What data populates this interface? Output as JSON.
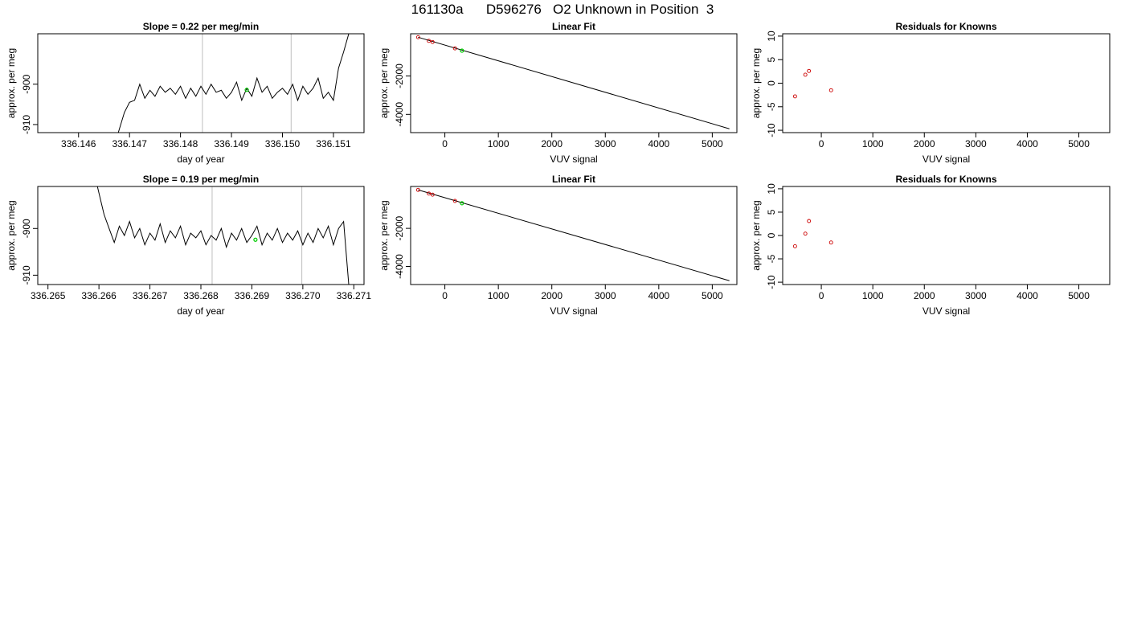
{
  "page_title": "161130a      D596276   O2 Unknown in Position  3",
  "colors": {
    "line": "#000000",
    "grid": "#bebebe",
    "known_point": "#cc0000",
    "unknown_point": "#00cc00"
  },
  "chart_data": [
    {
      "id": "ts1",
      "type": "line",
      "title": "Slope =  0.22  per meg/min",
      "xlabel": "day of year",
      "ylabel": "approx. per meg",
      "xlim": [
        336.1452,
        336.1516
      ],
      "ylim": [
        -912,
        -887.5
      ],
      "xticks": [
        336.146,
        336.147,
        336.148,
        336.149,
        336.15,
        336.151
      ],
      "xtick_labels": [
        "336.146",
        "336.147",
        "336.148",
        "336.149",
        "336.150",
        "336.151"
      ],
      "yticks": [
        -910,
        -900
      ],
      "ytick_labels": [
        "-910",
        "-900"
      ],
      "vlines": [
        336.14843,
        336.15017
      ],
      "series": [
        {
          "x": [
            336.14678,
            336.1469,
            336.147,
            336.1471,
            336.1472,
            336.1473,
            336.1474,
            336.1475,
            336.1476,
            336.1477,
            336.1478,
            336.1479,
            336.148,
            336.1481,
            336.1482,
            336.1483,
            336.1484,
            336.1485,
            336.1486,
            336.1487,
            336.1488,
            336.1489,
            336.149,
            336.1491,
            336.1492,
            336.1493,
            336.1494,
            336.1495,
            336.1496,
            336.1497,
            336.1498,
            336.1499,
            336.15,
            336.1501,
            336.1502,
            336.1503,
            336.1504,
            336.1505,
            336.1506,
            336.1507,
            336.1508,
            336.1509,
            336.151,
            336.1511,
            336.1512,
            336.1513
          ],
          "y": [
            -912,
            -907,
            -904.5,
            -904,
            -900,
            -903.5,
            -901.5,
            -903,
            -900.5,
            -902,
            -901,
            -902.5,
            -900.5,
            -903.5,
            -901,
            -903,
            -900.5,
            -902.5,
            -900,
            -902,
            -901.5,
            -903.5,
            -902,
            -899.5,
            -904,
            -901,
            -903,
            -898.5,
            -902,
            -900.5,
            -903.5,
            -902,
            -901,
            -902.5,
            -900,
            -904,
            -900.5,
            -902.5,
            -901,
            -898.5,
            -903.5,
            -902,
            -904,
            -896,
            -892,
            -887.5
          ]
        }
      ],
      "unknown_point": {
        "x": 336.1493,
        "y": -901.4
      }
    },
    {
      "id": "fit1",
      "type": "scatter",
      "title": "Linear Fit",
      "xlabel": "VUV signal",
      "ylabel": "approx. per meg",
      "xlim": [
        -640,
        5460
      ],
      "ylim": [
        -4950,
        200
      ],
      "xticks": [
        0,
        1000,
        2000,
        3000,
        4000,
        5000
      ],
      "xtick_labels": [
        "0",
        "1000",
        "2000",
        "3000",
        "4000",
        "5000"
      ],
      "yticks": [
        -4000,
        -2000
      ],
      "ytick_labels": [
        "-4000",
        "-2000"
      ],
      "fit_line": {
        "x": [
          -500,
          5320
        ],
        "y": [
          20,
          -4750
        ]
      },
      "known_points": {
        "x": [
          -500,
          -300,
          -230,
          190
        ],
        "y": [
          20,
          -170,
          -230,
          -560
        ]
      },
      "unknown_point": {
        "x": 320,
        "y": -680
      }
    },
    {
      "id": "res1",
      "type": "scatter",
      "title": "Residuals for Knowns",
      "xlabel": "VUV signal",
      "ylabel": "approx. per meg",
      "xlim": [
        -750,
        5600
      ],
      "ylim": [
        -10.5,
        10.5
      ],
      "xticks": [
        0,
        1000,
        2000,
        3000,
        4000,
        5000
      ],
      "xtick_labels": [
        "0",
        "1000",
        "2000",
        "3000",
        "4000",
        "5000"
      ],
      "yticks": [
        -10,
        -5,
        0,
        5,
        10
      ],
      "ytick_labels": [
        "-10",
        "-5",
        "0",
        "5",
        "10"
      ],
      "known_points": {
        "x": [
          -510,
          -310,
          -240,
          190
        ],
        "y": [
          -2.8,
          1.8,
          2.6,
          -1.5
        ]
      }
    },
    {
      "id": "ts2",
      "type": "line",
      "title": "Slope =  0.19  per meg/min",
      "xlabel": "day of year",
      "ylabel": "approx. per meg",
      "xlim": [
        336.2648,
        336.2712
      ],
      "ylim": [
        -912,
        -891
      ],
      "xticks": [
        336.265,
        336.266,
        336.267,
        336.268,
        336.269,
        336.27,
        336.271
      ],
      "xtick_labels": [
        "336.265",
        "336.266",
        "336.267",
        "336.268",
        "336.269",
        "336.270",
        "336.271"
      ],
      "yticks": [
        -910,
        -900
      ],
      "ytick_labels": [
        "-910",
        "-900"
      ],
      "vlines": [
        336.26822,
        336.26998
      ],
      "series": [
        {
          "x": [
            336.26597,
            336.2661,
            336.2662,
            336.2663,
            336.2664,
            336.2665,
            336.2666,
            336.2667,
            336.2668,
            336.2669,
            336.267,
            336.2671,
            336.2672,
            336.2673,
            336.2674,
            336.2675,
            336.2676,
            336.2677,
            336.2678,
            336.2679,
            336.268,
            336.2681,
            336.2682,
            336.2683,
            336.2684,
            336.2685,
            336.2686,
            336.2687,
            336.2688,
            336.2689,
            336.269,
            336.2691,
            336.2692,
            336.2693,
            336.2694,
            336.2695,
            336.2696,
            336.2697,
            336.2698,
            336.2699,
            336.27,
            336.2701,
            336.2702,
            336.2703,
            336.2704,
            336.2705,
            336.2706,
            336.2707,
            336.2708,
            336.2709
          ],
          "y": [
            -891,
            -897,
            -900,
            -903,
            -899.5,
            -901.5,
            -898.5,
            -902,
            -900,
            -903.5,
            -901,
            -902.5,
            -899,
            -903,
            -900.5,
            -902,
            -899.5,
            -903.5,
            -901,
            -902,
            -900.5,
            -903.5,
            -901.5,
            -902.5,
            -900,
            -904,
            -901,
            -902.5,
            -900,
            -903,
            -901.5,
            -899.5,
            -903.5,
            -901,
            -902.5,
            -900,
            -903,
            -901,
            -902.5,
            -900.5,
            -903.5,
            -901,
            -903,
            -900,
            -902,
            -899.5,
            -903.5,
            -900,
            -898.5,
            -912
          ]
        }
      ],
      "unknown_point": {
        "x": 336.26907,
        "y": -902.4
      }
    },
    {
      "id": "fit2",
      "type": "scatter",
      "title": "Linear Fit",
      "xlabel": "VUV signal",
      "ylabel": "approx. per meg",
      "xlim": [
        -640,
        5460
      ],
      "ylim": [
        -4950,
        200
      ],
      "xticks": [
        0,
        1000,
        2000,
        3000,
        4000,
        5000
      ],
      "xtick_labels": [
        "0",
        "1000",
        "2000",
        "3000",
        "4000",
        "5000"
      ],
      "yticks": [
        -4000,
        -2000
      ],
      "ytick_labels": [
        "-4000",
        "-2000"
      ],
      "fit_line": {
        "x": [
          -500,
          5320
        ],
        "y": [
          20,
          -4750
        ]
      },
      "known_points": {
        "x": [
          -500,
          -300,
          -230,
          190
        ],
        "y": [
          20,
          -170,
          -230,
          -560
        ]
      },
      "unknown_point": {
        "x": 320,
        "y": -680
      }
    },
    {
      "id": "res2",
      "type": "scatter",
      "title": "Residuals for Knowns",
      "xlabel": "VUV signal",
      "ylabel": "approx. per meg",
      "xlim": [
        -750,
        5600
      ],
      "ylim": [
        -10.5,
        10.5
      ],
      "xticks": [
        0,
        1000,
        2000,
        3000,
        4000,
        5000
      ],
      "xtick_labels": [
        "0",
        "1000",
        "2000",
        "3000",
        "4000",
        "5000"
      ],
      "yticks": [
        -10,
        -5,
        0,
        5,
        10
      ],
      "ytick_labels": [
        "-10",
        "-5",
        "0",
        "5",
        "10"
      ],
      "known_points": {
        "x": [
          -510,
          -310,
          -240,
          190
        ],
        "y": [
          -2.3,
          0.4,
          3.1,
          -1.5
        ]
      }
    }
  ]
}
